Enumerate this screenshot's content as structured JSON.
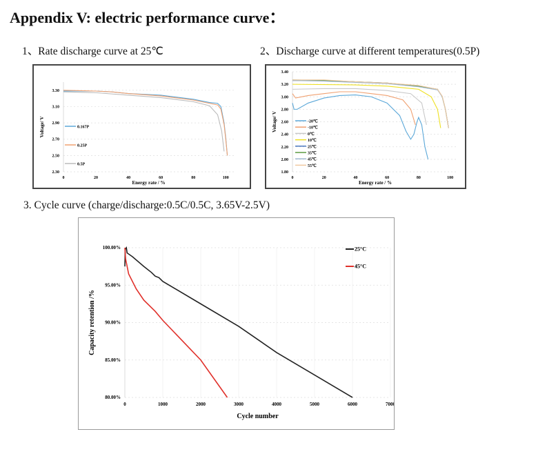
{
  "document": {
    "title": "Appendix V: electric performance curve：",
    "caption1": "1、Rate discharge curve at 25℃",
    "caption2": "2、Discharge curve at different temperatures(0.5P)",
    "caption3": "3. Cycle curve (charge/discharge:0.5C/0.5C, 3.65V-2.5V)"
  },
  "chart_data": [
    {
      "type": "line",
      "title": "Rate discharge curve at 25℃",
      "xlabel": "Energy rate / %",
      "ylabel": "Voltage/ V",
      "xlim": [
        0,
        105
      ],
      "ylim": [
        2.3,
        3.4
      ],
      "xticks": [
        0,
        20,
        40,
        60,
        80,
        100
      ],
      "xtick_labels": [
        "0",
        "20",
        "40",
        "60",
        "80",
        "100"
      ],
      "yticks": [
        2.3,
        2.5,
        2.7,
        2.9,
        3.1,
        3.3
      ],
      "ytick_labels": [
        "2.30",
        "2.50",
        "2.70",
        "2.90",
        "3.10",
        "3.30"
      ],
      "legend": "left",
      "series": [
        {
          "name": "0.167P",
          "color": "#5aa7d8",
          "points": [
            [
              0,
              3.29
            ],
            [
              20,
              3.29
            ],
            [
              30,
              3.28
            ],
            [
              40,
              3.26
            ],
            [
              60,
              3.24
            ],
            [
              80,
              3.19
            ],
            [
              90,
              3.15
            ],
            [
              95,
              3.14
            ],
            [
              97,
              3.1
            ],
            [
              99,
              2.9
            ],
            [
              100,
              2.72
            ],
            [
              101,
              2.5
            ]
          ]
        },
        {
          "name": "0.25P",
          "color": "#f0a070",
          "points": [
            [
              0,
              3.3
            ],
            [
              20,
              3.29
            ],
            [
              30,
              3.28
            ],
            [
              40,
              3.26
            ],
            [
              60,
              3.23
            ],
            [
              80,
              3.18
            ],
            [
              90,
              3.14
            ],
            [
              95,
              3.12
            ],
            [
              97,
              3.07
            ],
            [
              99,
              2.88
            ],
            [
              100,
              2.7
            ],
            [
              101,
              2.5
            ]
          ]
        },
        {
          "name": "0.5P",
          "color": "#bbbbbb",
          "points": [
            [
              0,
              3.28
            ],
            [
              20,
              3.27
            ],
            [
              40,
              3.24
            ],
            [
              60,
              3.21
            ],
            [
              80,
              3.16
            ],
            [
              90,
              3.11
            ],
            [
              95,
              3.0
            ],
            [
              97.5,
              2.8
            ],
            [
              99,
              2.55
            ]
          ]
        }
      ]
    },
    {
      "type": "line",
      "title": "Discharge curve at different temperatures(0.5P)",
      "xlabel": "Energy rate / %",
      "ylabel": "Voltage/ V",
      "xlim": [
        0,
        105
      ],
      "ylim": [
        1.8,
        3.4
      ],
      "xticks": [
        0,
        20,
        40,
        60,
        80,
        100
      ],
      "xtick_labels": [
        "0",
        "20",
        "40",
        "60",
        "80",
        "100"
      ],
      "yticks": [
        1.8,
        2.0,
        2.2,
        2.4,
        2.6,
        2.8,
        3.0,
        3.2,
        3.4
      ],
      "ytick_labels": [
        "1.80",
        "2.00",
        "2.20",
        "2.40",
        "2.60",
        "2.80",
        "3.00",
        "3.20",
        "3.40"
      ],
      "legend": "left",
      "series": [
        {
          "name": "-20℃",
          "color": "#5aa7d8",
          "points": [
            [
              0,
              2.9
            ],
            [
              1,
              2.8
            ],
            [
              3,
              2.8
            ],
            [
              10,
              2.9
            ],
            [
              20,
              2.98
            ],
            [
              30,
              3.02
            ],
            [
              40,
              3.03
            ],
            [
              50,
              3.0
            ],
            [
              60,
              2.9
            ],
            [
              68,
              2.7
            ],
            [
              72,
              2.45
            ],
            [
              75,
              2.32
            ],
            [
              77,
              2.4
            ],
            [
              79,
              2.6
            ],
            [
              80,
              2.67
            ],
            [
              82,
              2.55
            ],
            [
              84,
              2.2
            ],
            [
              86,
              2.0
            ]
          ]
        },
        {
          "name": "-10℃",
          "color": "#f0a070",
          "points": [
            [
              0,
              3.05
            ],
            [
              2,
              2.98
            ],
            [
              10,
              3.02
            ],
            [
              20,
              3.05
            ],
            [
              30,
              3.08
            ],
            [
              40,
              3.08
            ],
            [
              50,
              3.05
            ],
            [
              60,
              3.02
            ],
            [
              70,
              2.95
            ],
            [
              75,
              2.8
            ],
            [
              78,
              2.55
            ]
          ]
        },
        {
          "name": "0℃",
          "color": "#c8c8c8",
          "points": [
            [
              0,
              3.12
            ],
            [
              20,
              3.13
            ],
            [
              40,
              3.13
            ],
            [
              60,
              3.1
            ],
            [
              75,
              3.05
            ],
            [
              82,
              2.9
            ],
            [
              85,
              2.55
            ]
          ]
        },
        {
          "name": "10℃",
          "color": "#eee020",
          "points": [
            [
              0,
              3.2
            ],
            [
              40,
              3.19
            ],
            [
              60,
              3.17
            ],
            [
              80,
              3.12
            ],
            [
              88,
              3.0
            ],
            [
              92,
              2.8
            ],
            [
              94,
              2.5
            ]
          ]
        },
        {
          "name": "25℃",
          "color": "#4a78c0",
          "points": [
            [
              0,
              3.26
            ],
            [
              20,
              3.26
            ],
            [
              40,
              3.24
            ],
            [
              60,
              3.22
            ],
            [
              80,
              3.17
            ],
            [
              92,
              3.12
            ],
            [
              95,
              3.0
            ],
            [
              97,
              2.8
            ],
            [
              99,
              2.5
            ]
          ]
        },
        {
          "name": "35℃",
          "color": "#5a9a40",
          "points": [
            [
              0,
              3.27
            ],
            [
              20,
              3.26
            ],
            [
              40,
              3.24
            ],
            [
              60,
              3.22
            ],
            [
              80,
              3.17
            ],
            [
              92,
              3.12
            ],
            [
              95,
              3.0
            ],
            [
              97,
              2.8
            ],
            [
              99,
              2.5
            ]
          ]
        },
        {
          "name": "45℃",
          "color": "#a0b8d0",
          "points": [
            [
              0,
              3.26
            ],
            [
              20,
              3.25
            ],
            [
              40,
              3.23
            ],
            [
              60,
              3.21
            ],
            [
              80,
              3.16
            ],
            [
              92,
              3.11
            ],
            [
              95,
              3.0
            ],
            [
              97,
              2.8
            ],
            [
              99,
              2.5
            ]
          ]
        },
        {
          "name": "55℃",
          "color": "#f0c8a0",
          "points": [
            [
              0,
              3.27
            ],
            [
              20,
              3.27
            ],
            [
              40,
              3.24
            ],
            [
              60,
              3.22
            ],
            [
              80,
              3.18
            ],
            [
              92,
              3.12
            ],
            [
              95,
              3.01
            ],
            [
              97,
              2.8
            ],
            [
              99,
              2.5
            ]
          ]
        }
      ]
    },
    {
      "type": "line",
      "title": "Cycle curve",
      "xlabel": "Cycle number",
      "ylabel": "Capacity retention /%",
      "xlim": [
        0,
        7000
      ],
      "ylim": [
        80,
        100
      ],
      "xticks": [
        0,
        1000,
        2000,
        3000,
        4000,
        5000,
        6000,
        7000
      ],
      "xtick_labels": [
        "0",
        "1000",
        "2000",
        "3000",
        "4000",
        "5000",
        "6000",
        "7000"
      ],
      "yticks": [
        80,
        85,
        90,
        95,
        100
      ],
      "ytick_labels": [
        "80.00%",
        "85.00%",
        "90.00%",
        "95.00%",
        "100.00%"
      ],
      "legend": "top-right",
      "series": [
        {
          "name": "25°C",
          "color": "#222222",
          "points": [
            [
              0,
              97.5
            ],
            [
              10,
              99.8
            ],
            [
              40,
              100
            ],
            [
              60,
              99.3
            ],
            [
              200,
              98.8
            ],
            [
              500,
              97.5
            ],
            [
              700,
              96.7
            ],
            [
              800,
              96.2
            ],
            [
              900,
              96.0
            ],
            [
              1000,
              95.5
            ],
            [
              2000,
              92.5
            ],
            [
              3000,
              89.5
            ],
            [
              4000,
              86.0
            ],
            [
              5000,
              83.0
            ],
            [
              6000,
              80.0
            ]
          ]
        },
        {
          "name": "45°C",
          "color": "#e0302a",
          "points": [
            [
              0,
              100
            ],
            [
              20,
              98.5
            ],
            [
              100,
              96.5
            ],
            [
              300,
              94.5
            ],
            [
              500,
              93
            ],
            [
              800,
              91.5
            ],
            [
              1000,
              90.3
            ],
            [
              2000,
              85
            ],
            [
              2700,
              80
            ]
          ]
        }
      ]
    }
  ]
}
